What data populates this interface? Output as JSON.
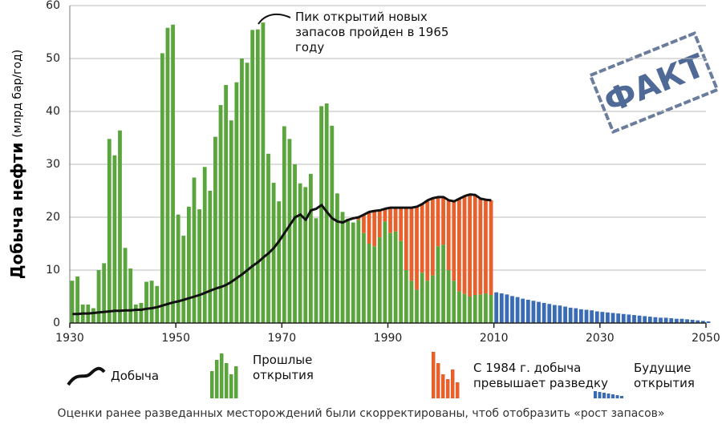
{
  "chart_data": {
    "type": "bar",
    "y_label": "Добыча нефти",
    "y_unit": "(млрд бар/год)",
    "annotation": "Пик открытий новых запасов пройден в 1965 году",
    "stamp": "ФАКТ",
    "caption": "Оценки ранее разведанных месторождений были скорректированы, чтоб отобразить «рост запасов»",
    "xlim": [
      1930,
      2050
    ],
    "xticks": [
      1930,
      1950,
      1970,
      1990,
      2010,
      2030,
      2050
    ],
    "ylim": [
      0,
      60
    ],
    "yticks": [
      0,
      10,
      20,
      30,
      40,
      50,
      60
    ],
    "grid": true,
    "x": [
      1930,
      1931,
      1932,
      1933,
      1934,
      1935,
      1936,
      1937,
      1938,
      1939,
      1940,
      1941,
      1942,
      1943,
      1944,
      1945,
      1946,
      1947,
      1948,
      1949,
      1950,
      1951,
      1952,
      1953,
      1954,
      1955,
      1956,
      1957,
      1958,
      1959,
      1960,
      1961,
      1962,
      1963,
      1964,
      1965,
      1966,
      1967,
      1968,
      1969,
      1970,
      1971,
      1972,
      1973,
      1974,
      1975,
      1976,
      1977,
      1978,
      1979,
      1980,
      1981,
      1982,
      1983,
      1984,
      1985,
      1986,
      1987,
      1988,
      1989,
      1990,
      1991,
      1992,
      1993,
      1994,
      1995,
      1996,
      1997,
      1998,
      1999,
      2000,
      2001,
      2002,
      2003,
      2004,
      2005,
      2006,
      2007,
      2008,
      2009,
      2010,
      2011,
      2012,
      2013,
      2014,
      2015,
      2016,
      2017,
      2018,
      2019,
      2020,
      2021,
      2022,
      2023,
      2024,
      2025,
      2026,
      2027,
      2028,
      2029,
      2030,
      2031,
      2032,
      2033,
      2034,
      2035,
      2036,
      2037,
      2038,
      2039,
      2040,
      2041,
      2042,
      2043,
      2044,
      2045,
      2046,
      2047,
      2048,
      2049,
      2050
    ],
    "series": [
      {
        "name": "Прошлые открытия",
        "type": "bar",
        "color": "#5aa63c",
        "values": [
          8,
          8.8,
          3.5,
          3.5,
          2.8,
          10,
          11.3,
          34.8,
          31.7,
          36.4,
          14.2,
          10.3,
          3.5,
          3.8,
          7.8,
          8,
          7,
          51,
          55.8,
          56.4,
          20.5,
          16.5,
          22,
          27.5,
          21.5,
          29.5,
          25,
          35.2,
          41.2,
          45,
          38.3,
          45.5,
          50,
          49.2,
          55.4,
          55.5,
          56.8,
          32,
          26.5,
          23,
          37.2,
          34.8,
          30,
          26.4,
          25.7,
          28.2,
          19.8,
          41,
          41.5,
          37.3,
          24.5,
          21,
          19.7,
          19,
          19.5,
          17,
          15,
          14.5,
          16.2,
          19.2,
          17,
          17.3,
          15.5,
          10,
          8,
          6.3,
          9.5,
          8,
          9,
          14.5,
          14.8,
          10,
          8,
          6,
          5.5,
          5,
          5.3,
          5.4,
          5.6,
          5.3,
          null,
          null,
          null,
          null,
          null,
          null,
          null,
          null,
          null,
          null,
          null,
          null,
          null,
          null,
          null,
          null,
          null,
          null,
          null,
          null,
          null,
          null,
          null,
          null,
          null,
          null,
          null,
          null,
          null,
          null,
          null,
          null,
          null,
          null,
          null,
          null,
          null,
          null,
          null,
          null,
          null
        ]
      },
      {
        "name": "С 1984 г. добыча превышает разведку",
        "type": "bar",
        "color": "#e8602c",
        "values": [
          null,
          null,
          null,
          null,
          null,
          null,
          null,
          null,
          null,
          null,
          null,
          null,
          null,
          null,
          null,
          null,
          null,
          null,
          null,
          null,
          null,
          null,
          null,
          null,
          null,
          null,
          null,
          null,
          null,
          null,
          null,
          null,
          null,
          null,
          null,
          null,
          null,
          null,
          null,
          null,
          null,
          null,
          null,
          null,
          null,
          null,
          null,
          null,
          null,
          null,
          null,
          null,
          null,
          null,
          0.5,
          3.5,
          6,
          6.7,
          5.1,
          2.4,
          4.8,
          4.5,
          6.3,
          11.8,
          13.8,
          15.7,
          13,
          15.2,
          14.6,
          9.3,
          9,
          13.2,
          15,
          17.5,
          18.5,
          19.3,
          18.9,
          18.1,
          17.7,
          17.9,
          null,
          null,
          null,
          null,
          null,
          null,
          null,
          null,
          null,
          null,
          null,
          null,
          null,
          null,
          null,
          null,
          null,
          null,
          null,
          null,
          null,
          null,
          null,
          null,
          null,
          null,
          null,
          null,
          null,
          null,
          null,
          null,
          null,
          null,
          null,
          null,
          null,
          null,
          null,
          null,
          null
        ]
      },
      {
        "name": "Будущие открытия",
        "type": "bar",
        "color": "#3a6bb5",
        "values": [
          null,
          null,
          null,
          null,
          null,
          null,
          null,
          null,
          null,
          null,
          null,
          null,
          null,
          null,
          null,
          null,
          null,
          null,
          null,
          null,
          null,
          null,
          null,
          null,
          null,
          null,
          null,
          null,
          null,
          null,
          null,
          null,
          null,
          null,
          null,
          null,
          null,
          null,
          null,
          null,
          null,
          null,
          null,
          null,
          null,
          null,
          null,
          null,
          null,
          null,
          null,
          null,
          null,
          null,
          null,
          null,
          null,
          null,
          null,
          null,
          null,
          null,
          null,
          null,
          null,
          null,
          null,
          null,
          null,
          null,
          null,
          null,
          null,
          null,
          null,
          null,
          null,
          null,
          null,
          null,
          5.8,
          5.6,
          5.4,
          5.1,
          4.9,
          4.6,
          4.4,
          4.2,
          4,
          3.8,
          3.6,
          3.4,
          3.3,
          3.1,
          2.9,
          2.8,
          2.6,
          2.5,
          2.4,
          2.2,
          2.1,
          2,
          1.9,
          1.8,
          1.7,
          1.6,
          1.5,
          1.4,
          1.3,
          1.2,
          1.1,
          1,
          1,
          0.9,
          0.8,
          0.8,
          0.7,
          0.6,
          0.5,
          0.4,
          0.3
        ]
      },
      {
        "name": "Добыча",
        "type": "line",
        "color": "#111111",
        "values": [
          1.7,
          1.7,
          1.8,
          1.8,
          1.9,
          2,
          2.1,
          2.2,
          2.3,
          2.3,
          2.4,
          2.4,
          2.5,
          2.5,
          2.7,
          2.8,
          3,
          3.3,
          3.6,
          3.9,
          4.1,
          4.4,
          4.7,
          5,
          5.3,
          5.7,
          6.1,
          6.5,
          6.8,
          7.2,
          7.8,
          8.5,
          9.2,
          10,
          10.8,
          11.5,
          12.4,
          13.2,
          14.2,
          15.5,
          17,
          18.5,
          20,
          20.5,
          19.5,
          21.3,
          21.6,
          22.3,
          21,
          19.8,
          19.2,
          19,
          19.5,
          19.8,
          20,
          20.5,
          21,
          21.2,
          21.3,
          21.6,
          21.8,
          21.8,
          21.8,
          21.8,
          21.8,
          22,
          22.5,
          23.2,
          23.6,
          23.8,
          23.8,
          23.2,
          23,
          23.5,
          24,
          24.3,
          24.2,
          23.5,
          23.3,
          23.2,
          null,
          null,
          null,
          null,
          null,
          null,
          null,
          null,
          null,
          null,
          null,
          null,
          null,
          null,
          null,
          null,
          null,
          null,
          null,
          null,
          null,
          null,
          null,
          null,
          null,
          null,
          null,
          null,
          null,
          null,
          null,
          null,
          null,
          null,
          null,
          null,
          null,
          null,
          null,
          null,
          null
        ]
      }
    ]
  }
}
